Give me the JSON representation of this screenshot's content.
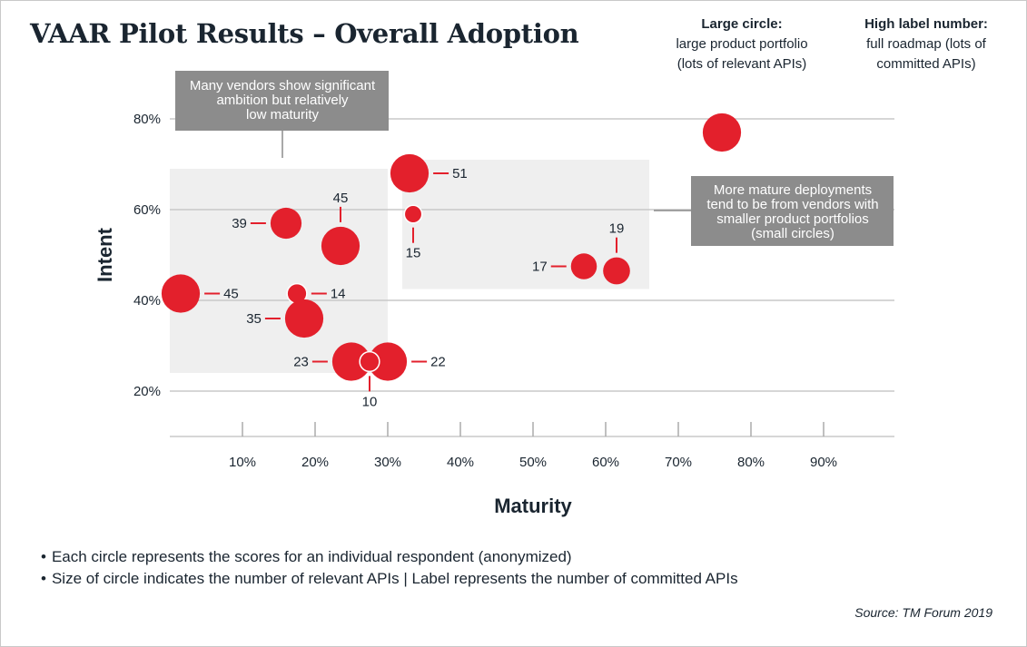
{
  "title": "VAAR Pilot Results – Overall Adoption",
  "legend": {
    "size": {
      "heading": "Large circle:",
      "text": "large product portfolio\n(lots of relevant APIs)"
    },
    "label": {
      "heading": "High label number:",
      "text": "full roadmap (lots of\ncommitted APIs)"
    }
  },
  "notes": [
    "Each circle represents the scores for an individual respondent (anonymized)",
    "Size of circle indicates the number of relevant APIs  |  Label represents the number of committed APIs"
  ],
  "source": "Source: TM Forum 2019",
  "colors": {
    "bubble": "#e3202c",
    "callout": "#8c8c8c",
    "shade": "#efefef",
    "grid": "#c8c8c8",
    "text": "#1a2530"
  },
  "chart_data": {
    "type": "scatter",
    "title": "VAAR Pilot Results – Overall Adoption",
    "xlabel": "Maturity",
    "ylabel": "Intent",
    "xlim": [
      0,
      100
    ],
    "ylim": [
      10,
      90
    ],
    "x_ticks": [
      "10%",
      "20%",
      "30%",
      "40%",
      "50%",
      "60%",
      "70%",
      "80%",
      "90%"
    ],
    "x_tick_values": [
      10,
      20,
      30,
      40,
      50,
      60,
      70,
      80,
      90
    ],
    "y_ticks": [
      "20%",
      "40%",
      "60%",
      "80%"
    ],
    "y_tick_values": [
      20,
      40,
      60,
      80
    ],
    "grid": "horizontal",
    "size_encoding": "number of relevant APIs (relative)",
    "points": [
      {
        "x": 76,
        "y": 77,
        "size": 3,
        "label": ""
      },
      {
        "x": 33,
        "y": 68,
        "size": 3,
        "label": "51",
        "label_pos": "right"
      },
      {
        "x": 33.5,
        "y": 59,
        "size": 1,
        "label": "15",
        "label_pos": "below"
      },
      {
        "x": 16,
        "y": 57,
        "size": 2.3,
        "label": "39",
        "label_pos": "left"
      },
      {
        "x": 23.5,
        "y": 52,
        "size": 3,
        "label": "45",
        "label_pos": "above"
      },
      {
        "x": 57,
        "y": 47.5,
        "size": 1.8,
        "label": "17",
        "label_pos": "left"
      },
      {
        "x": 61.5,
        "y": 46.5,
        "size": 1.9,
        "label": "19",
        "label_pos": "above"
      },
      {
        "x": 1.5,
        "y": 41.5,
        "size": 3,
        "label": "45",
        "label_pos": "right"
      },
      {
        "x": 17.5,
        "y": 41.5,
        "size": 1.2,
        "label": "14",
        "label_pos": "right"
      },
      {
        "x": 18.5,
        "y": 36,
        "size": 3,
        "label": "35",
        "label_pos": "left"
      },
      {
        "x": 25,
        "y": 26.5,
        "size": 3,
        "label": "23",
        "label_pos": "left"
      },
      {
        "x": 30,
        "y": 26.5,
        "size": 3,
        "label": "22",
        "label_pos": "right"
      },
      {
        "x": 27.5,
        "y": 26.5,
        "size": 1.2,
        "label": "10",
        "label_pos": "below"
      }
    ],
    "annotations": [
      {
        "text": "Many vendors show significant\nambition but relatively\nlow maturity",
        "region": {
          "x": [
            0,
            30
          ],
          "y": [
            24,
            69
          ]
        }
      },
      {
        "text": "More mature deployments\ntend to be from vendors with\nsmaller product portfolios\n(small circles)",
        "region": {
          "x": [
            32,
            66
          ],
          "y": [
            42.5,
            71
          ]
        }
      }
    ]
  }
}
